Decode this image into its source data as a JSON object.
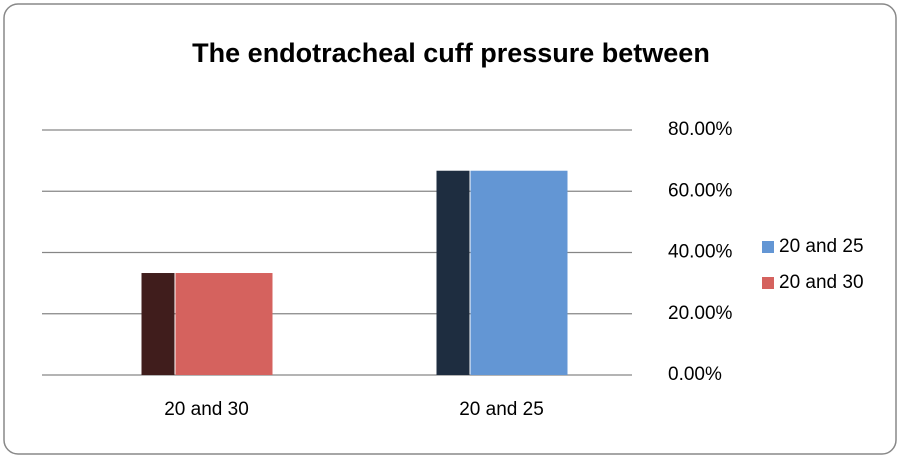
{
  "chart_data": {
    "type": "bar",
    "title": "The endotracheal cuff pressure between",
    "categories": [
      "20 and 30",
      "20 and 25"
    ],
    "series": [
      {
        "name": "20 and 25",
        "color": "#6396d4",
        "values": [
          null,
          66.7
        ]
      },
      {
        "name": "20 and 30",
        "color": "#d5625e",
        "values": [
          33.3,
          null
        ]
      }
    ],
    "ylim": [
      0,
      80
    ],
    "yticks": [
      {
        "value": 0,
        "label": "0.00%"
      },
      {
        "value": 20,
        "label": "20.00%"
      },
      {
        "value": 40,
        "label": "40.00%"
      },
      {
        "value": 60,
        "label": "60.00%"
      },
      {
        "value": 80,
        "label": "80.00%"
      }
    ],
    "grid": true,
    "legend": "right"
  }
}
